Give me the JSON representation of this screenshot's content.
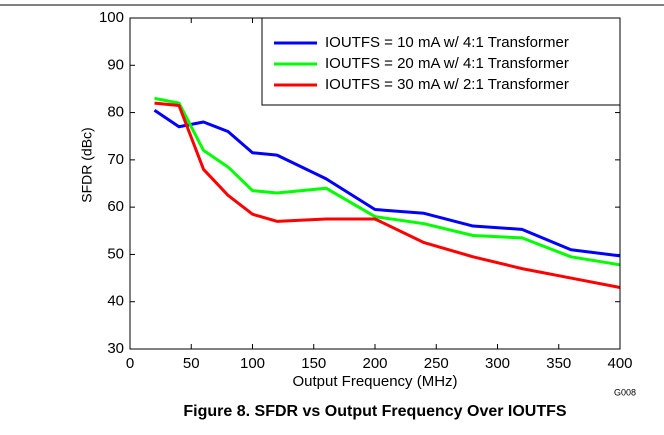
{
  "chart_data": {
    "type": "line",
    "title": "Figure 8. SFDR vs Output Frequency Over IOUTFS",
    "xlabel": "Output Frequency (MHz)",
    "ylabel": "SFDR (dBc)",
    "annotation": "G008",
    "x": [
      20,
      40,
      60,
      80,
      100,
      120,
      160,
      200,
      240,
      280,
      320,
      360,
      400
    ],
    "series": [
      {
        "name": "IOUTFS = 10 mA w/ 4:1 Transformer",
        "color": "#0000ff",
        "values": [
          80.5,
          77,
          78,
          76,
          71.5,
          71,
          66,
          59.5,
          58.7,
          56,
          55.3,
          51,
          49.7
        ]
      },
      {
        "name": "IOUTFS = 20 mA w/ 4:1 Transformer",
        "color": "#00ff00",
        "values": [
          83,
          82,
          72,
          68.5,
          63.5,
          63,
          64,
          58,
          56.5,
          54,
          53.5,
          49.5,
          47.8
        ]
      },
      {
        "name": "IOUTFS = 30 mA w/ 2:1 Transformer",
        "color": "#ff0000",
        "values": [
          82,
          81.5,
          68,
          62.5,
          58.5,
          57,
          57.5,
          57.5,
          52.5,
          49.5,
          47,
          45,
          43
        ]
      }
    ],
    "xlim": [
      0,
      400
    ],
    "xticks": [
      0,
      50,
      100,
      150,
      200,
      250,
      300,
      350,
      400
    ],
    "ylim": [
      30,
      100
    ],
    "yticks": [
      30,
      40,
      50,
      60,
      70,
      80,
      90,
      100
    ],
    "grid": false,
    "legend": "upper right"
  }
}
